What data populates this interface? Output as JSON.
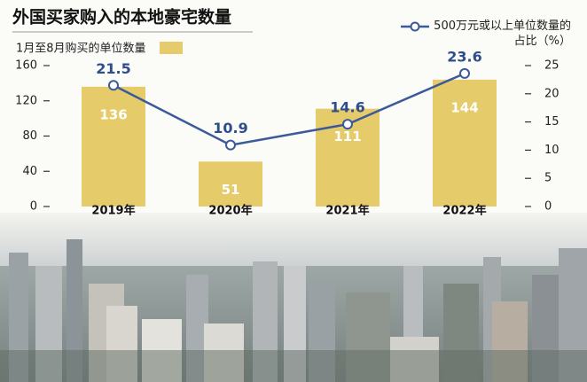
{
  "chart_data": {
    "type": "bar",
    "title": "外国买家购入的本地豪宅数量",
    "categories": [
      "2019年",
      "2020年",
      "2021年",
      "2022年"
    ],
    "series": [
      {
        "name": "1月至8月购买的单位数量",
        "type": "bar",
        "color": "#e5cb6a",
        "values": [
          136,
          51,
          111,
          144
        ]
      },
      {
        "name": "500万元或以上单位数量的占比（%）",
        "type": "line",
        "axis": "y2",
        "color": "#3b5a9a",
        "values": [
          21.5,
          10.9,
          14.6,
          23.6
        ]
      }
    ],
    "ylim": [
      0,
      160
    ],
    "yticks": [
      0,
      40,
      80,
      120,
      160
    ],
    "y2lim": [
      0,
      25
    ],
    "y2ticks": [
      0,
      5,
      10,
      15,
      20,
      25
    ]
  }
}
